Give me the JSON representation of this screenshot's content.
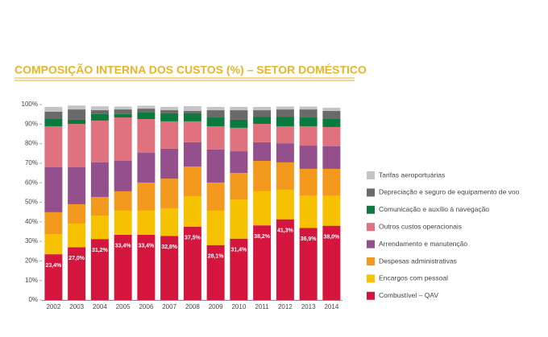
{
  "chart_data": {
    "type": "stacked_bar",
    "title": "COMPOSIÇÃO INTERNA DOS CUSTOS (%) – SETOR DOMÉSTICO",
    "categories": [
      "2002",
      "2003",
      "2004",
      "2005",
      "2006",
      "2007",
      "2008",
      "2009",
      "2010",
      "2011",
      "2012",
      "2013",
      "2014"
    ],
    "ylim": [
      0,
      100
    ],
    "yticks": [
      {
        "value": 0,
        "label": "0%"
      },
      {
        "value": 10,
        "label": "10%"
      },
      {
        "value": 20,
        "label": "20%"
      },
      {
        "value": 30,
        "label": "30%"
      },
      {
        "value": 40,
        "label": "40%"
      },
      {
        "value": 50,
        "label": "50%"
      },
      {
        "value": 60,
        "label": "60%"
      },
      {
        "value": 70,
        "label": "70%"
      },
      {
        "value": 80,
        "label": "80%"
      },
      {
        "value": 90,
        "label": "90%"
      },
      {
        "value": 100,
        "label": "100%"
      }
    ],
    "grid": false,
    "series": [
      {
        "name": "Combustível – QAV",
        "color": "#d4163f",
        "values": [
          23.4,
          27.0,
          31.2,
          33.4,
          33.4,
          32.8,
          37.5,
          28.1,
          31.4,
          38.2,
          41.3,
          36.9,
          38.0
        ],
        "value_labels": [
          "23,4%",
          "27,0%",
          "31,2%",
          "33,4%",
          "33,4%",
          "32,8%",
          "37,5%",
          "28,1%",
          "31,4%",
          "38,2%",
          "41,3%",
          "36,9%",
          "38,0%"
        ]
      },
      {
        "name": "Encargos com pessoal",
        "color": "#f6c200",
        "values": [
          10.3,
          12.1,
          12.0,
          12.3,
          12.3,
          14.1,
          15.6,
          17.6,
          20.0,
          17.4,
          15.1,
          16.6,
          15.5
        ]
      },
      {
        "name": "Despesas administrativas",
        "color": "#f39a1e",
        "values": [
          11.2,
          9.9,
          9.5,
          9.9,
          14.4,
          15.2,
          15.2,
          14.4,
          13.6,
          15.6,
          14.0,
          13.6,
          13.6
        ]
      },
      {
        "name": "Arrendamento e manutenção",
        "color": "#94508c",
        "values": [
          23.0,
          18.9,
          17.7,
          15.6,
          15.2,
          15.3,
          12.4,
          16.9,
          11.1,
          9.5,
          9.8,
          11.9,
          11.5
        ]
      },
      {
        "name": "Outros custos operacionais",
        "color": "#e0717f",
        "values": [
          21.0,
          22.2,
          21.4,
          22.2,
          17.3,
          14.0,
          10.7,
          11.9,
          12.0,
          9.4,
          8.7,
          9.9,
          9.9
        ]
      },
      {
        "name": "Comunicação e auxílio à navegação",
        "color": "#0b7a3e",
        "values": [
          3.7,
          2.1,
          3.3,
          1.7,
          3.3,
          4.1,
          4.1,
          4.5,
          4.1,
          3.7,
          4.9,
          4.5,
          4.1
        ]
      },
      {
        "name": "Depreciação e seguro de equipamento de voo",
        "color": "#6a6a6a",
        "values": [
          3.7,
          5.3,
          2.0,
          2.4,
          2.0,
          1.6,
          1.2,
          3.7,
          4.9,
          3.3,
          3.7,
          4.1,
          4.1
        ]
      },
      {
        "name": "Tarifas aeroportuárias",
        "color": "#c4c4c4",
        "values": [
          2.5,
          2.0,
          2.0,
          1.5,
          1.5,
          1.7,
          2.5,
          1.7,
          1.7,
          1.7,
          1.5,
          1.5,
          1.7
        ]
      }
    ]
  }
}
